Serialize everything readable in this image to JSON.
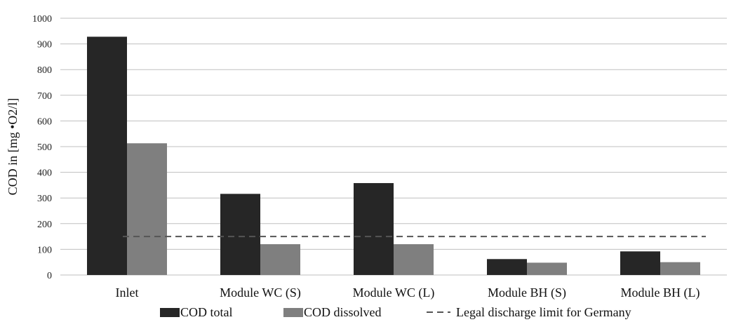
{
  "chart_data": {
    "type": "bar",
    "categories": [
      "Inlet",
      "Module WC (S)",
      "Module WC (L)",
      "Module BH (S)",
      "Module BH (L)"
    ],
    "series": [
      {
        "name": "COD total",
        "values": [
          928,
          316,
          358,
          62,
          92
        ],
        "color": "#262626"
      },
      {
        "name": "COD dissolved",
        "values": [
          513,
          120,
          120,
          48,
          50
        ],
        "color": "#7f7f7f"
      }
    ],
    "reference_line": {
      "name": "Legal discharge limit for Germany",
      "value": 150,
      "color": "#555555",
      "style": "dashed"
    },
    "title": "",
    "xlabel": "",
    "ylabel": "COD in [mg •O2/l]",
    "ylim": [
      0,
      1000
    ],
    "yticks": [
      0,
      100,
      200,
      300,
      400,
      500,
      600,
      700,
      800,
      900,
      1000
    ],
    "grid": true,
    "legend_position": "bottom"
  }
}
